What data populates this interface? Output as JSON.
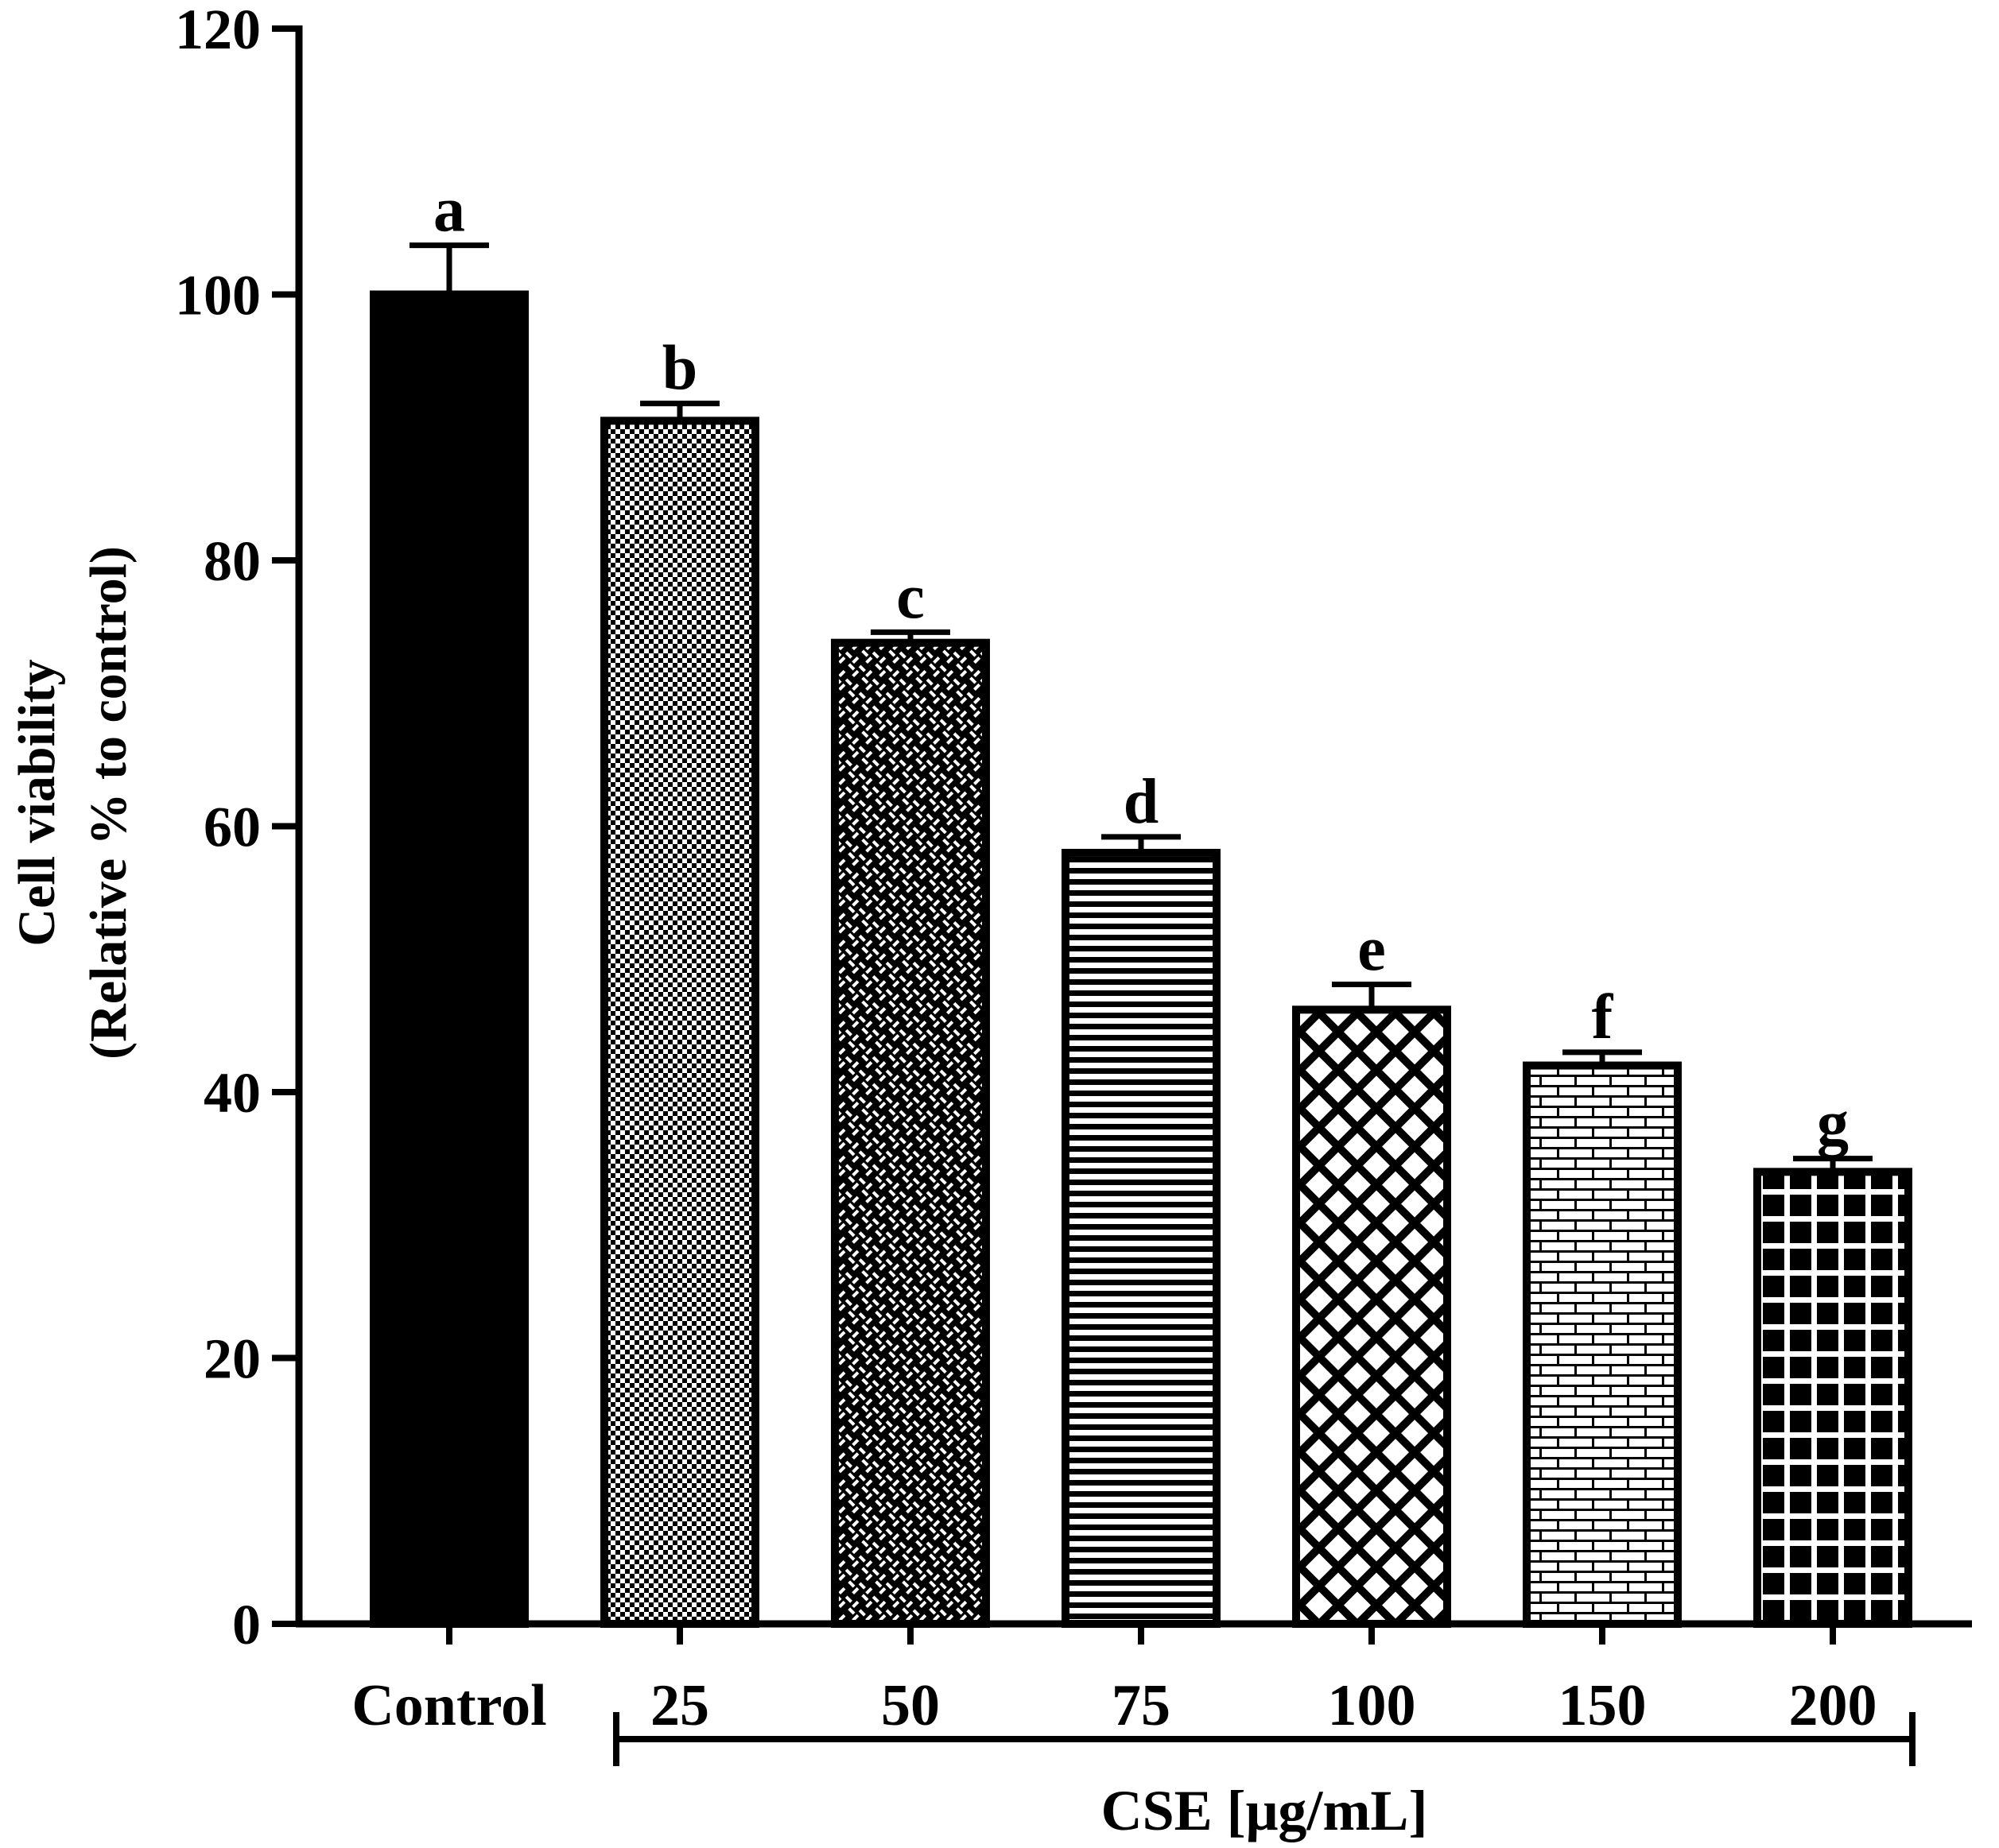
{
  "chart_data": {
    "type": "bar",
    "title": "",
    "ylabel_line1": "Cell viability",
    "ylabel_line2": "(Relative % to control)",
    "xlabel": "",
    "ylim": [
      0,
      120
    ],
    "yticks": [
      "0",
      "20",
      "40",
      "60",
      "80",
      "100",
      "120"
    ],
    "ytick_values": [
      0,
      20,
      40,
      60,
      80,
      100,
      120
    ],
    "categories": [
      "Control",
      "25",
      "50",
      "75",
      "100",
      "150",
      "200"
    ],
    "values": [
      100,
      90.5,
      73.8,
      58.0,
      46.2,
      42.0,
      34.0
    ],
    "errors": [
      3.7,
      1.3,
      0.8,
      1.2,
      1.9,
      1.0,
      1.0
    ],
    "significance_letters": [
      "a",
      "b",
      "c",
      "d",
      "e",
      "f",
      "g"
    ],
    "patterns": [
      "solid",
      "checker",
      "weave",
      "hlines",
      "diamond",
      "brick",
      "grid"
    ],
    "group_label": "CSE [μg/mL]",
    "group_start_index": 1,
    "group_end_index": 6,
    "colors": {
      "ink": "#000000",
      "background": "#ffffff"
    }
  }
}
